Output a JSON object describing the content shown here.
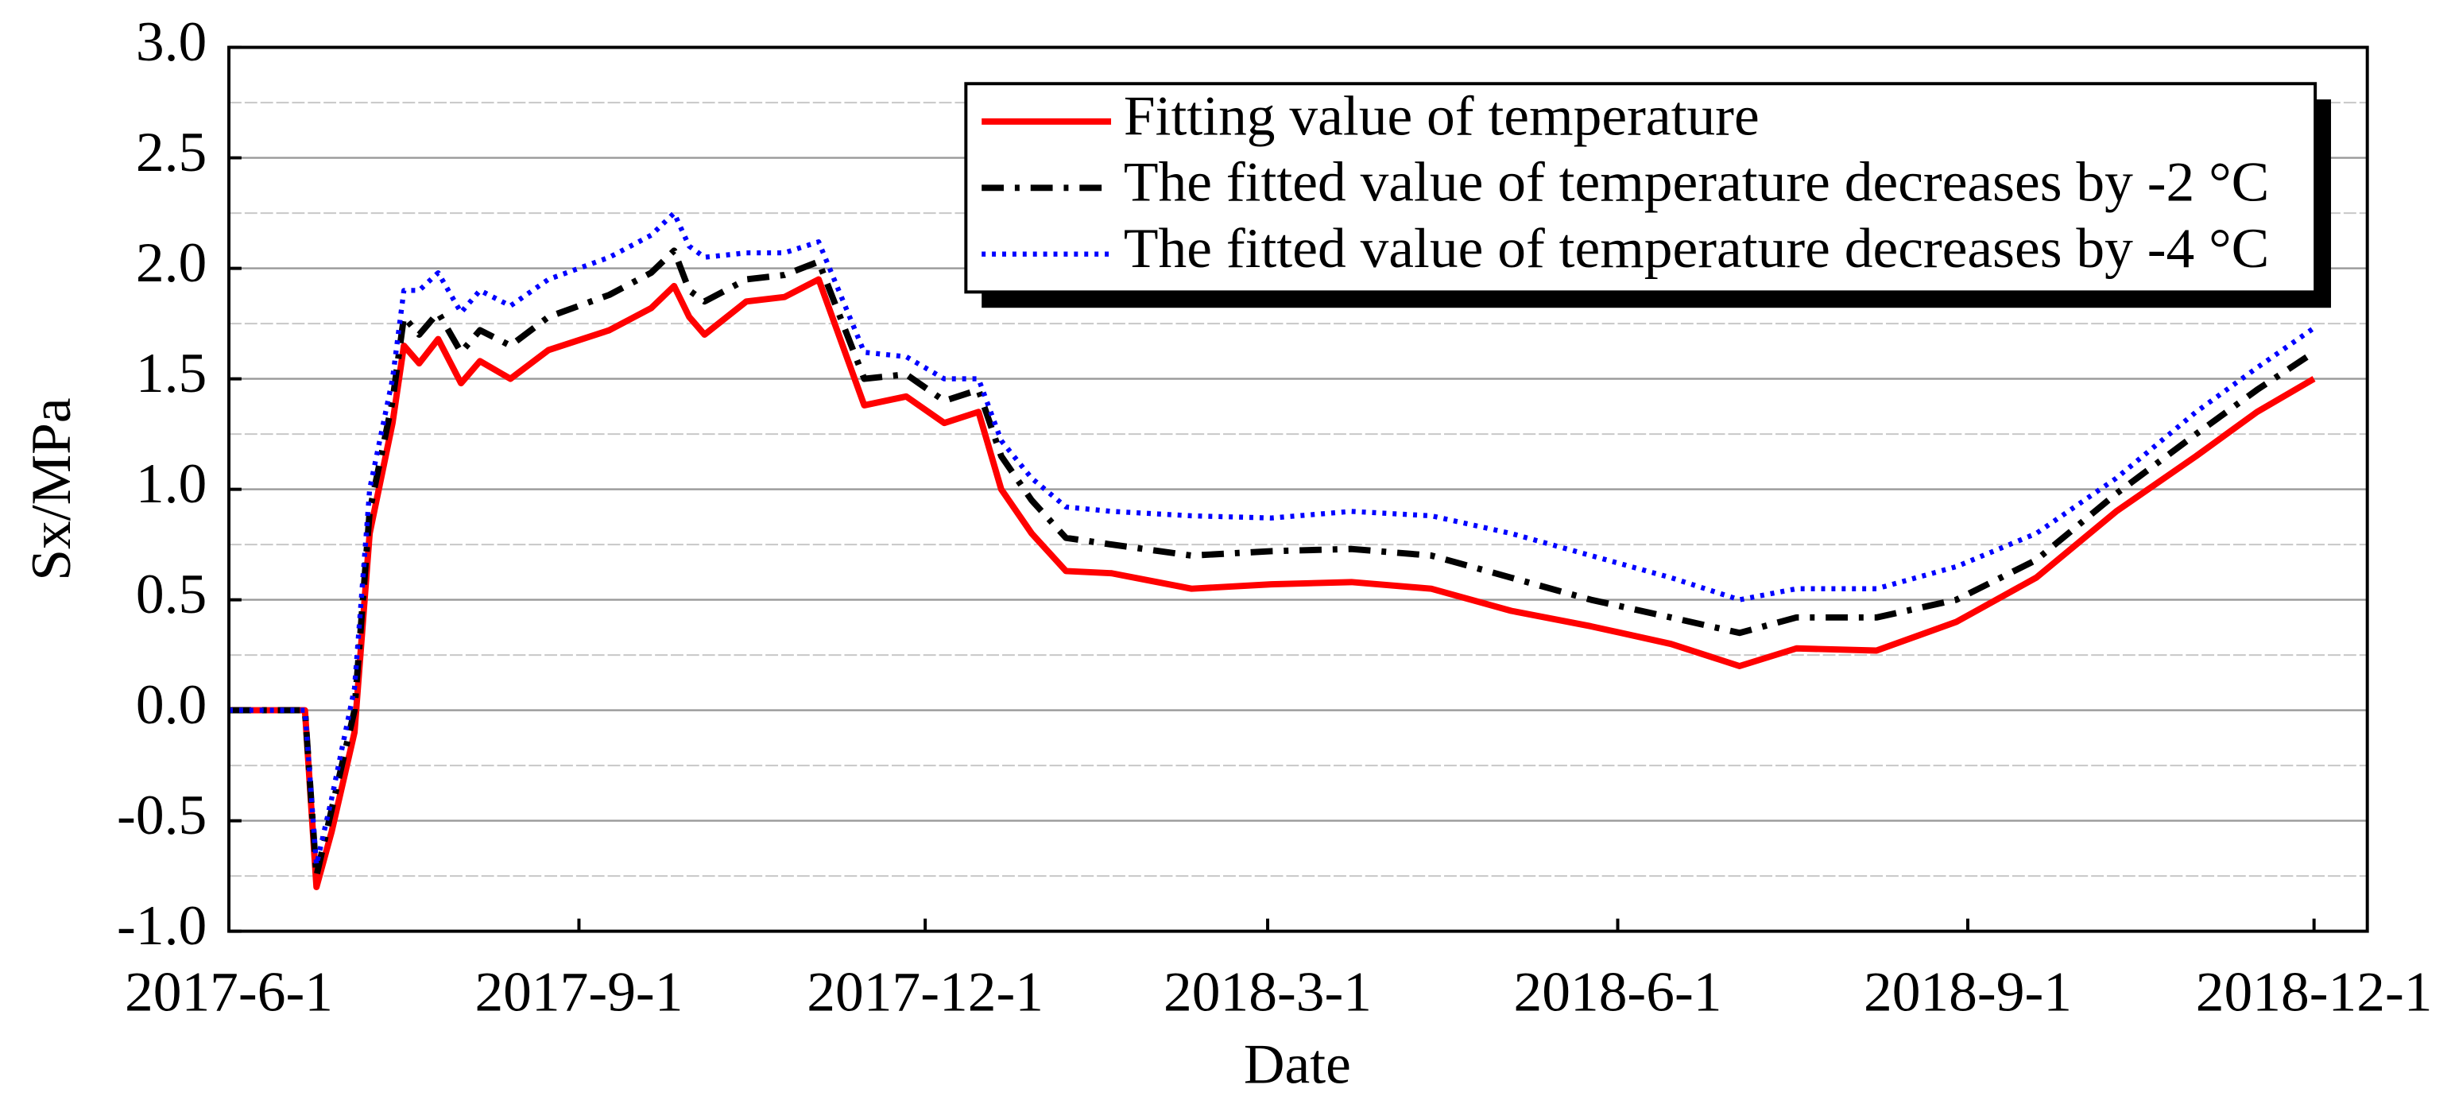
{
  "chart_data": {
    "type": "line",
    "x_label": "Date",
    "y_label": "Sx/MPa",
    "x": [
      "2017-06-01",
      "2017-06-21",
      "2017-06-24",
      "2017-06-28",
      "2017-07-04",
      "2017-07-08",
      "2017-07-14",
      "2017-07-17",
      "2017-07-21",
      "2017-07-26",
      "2017-08-01",
      "2017-08-06",
      "2017-08-14",
      "2017-08-24",
      "2017-09-09",
      "2017-09-20",
      "2017-09-26",
      "2017-09-30",
      "2017-10-04",
      "2017-10-15",
      "2017-10-25",
      "2017-11-03",
      "2017-11-15",
      "2017-11-26",
      "2017-12-06",
      "2017-12-15",
      "2017-12-21",
      "2017-12-29",
      "2018-01-07",
      "2018-01-19",
      "2018-02-09",
      "2018-03-02",
      "2018-03-23",
      "2018-04-13",
      "2018-05-04",
      "2018-05-25",
      "2018-06-15",
      "2018-07-03",
      "2018-07-18",
      "2018-08-08",
      "2018-08-29",
      "2018-09-19",
      "2018-10-10",
      "2018-10-31",
      "2018-11-16",
      "2018-12-01"
    ],
    "series": [
      {
        "name": "Fitting value of temperature",
        "color": "#ff0000",
        "linestyle": "solid",
        "values": [
          0,
          0,
          -0.8,
          -0.55,
          -0.1,
          0.8,
          1.3,
          1.65,
          1.57,
          1.68,
          1.48,
          1.58,
          1.5,
          1.63,
          1.72,
          1.82,
          1.92,
          1.78,
          1.7,
          1.85,
          1.87,
          1.95,
          1.38,
          1.42,
          1.3,
          1.35,
          1.0,
          0.8,
          0.63,
          0.62,
          0.55,
          0.57,
          0.58,
          0.55,
          0.45,
          0.38,
          0.3,
          0.2,
          0.28,
          0.27,
          0.4,
          0.6,
          0.9,
          1.15,
          1.35,
          1.5
        ]
      },
      {
        "name": "The fitted value of temperature decreases by -2 °C",
        "color": "#000000",
        "linestyle": "dashdot",
        "values": [
          0,
          0,
          -0.75,
          -0.45,
          0,
          0.9,
          1.4,
          1.78,
          1.7,
          1.8,
          1.62,
          1.72,
          1.65,
          1.78,
          1.88,
          1.98,
          2.08,
          1.9,
          1.85,
          1.95,
          1.97,
          2.03,
          1.5,
          1.52,
          1.4,
          1.45,
          1.15,
          0.95,
          0.78,
          0.75,
          0.7,
          0.72,
          0.73,
          0.7,
          0.6,
          0.5,
          0.42,
          0.35,
          0.42,
          0.42,
          0.5,
          0.68,
          0.98,
          1.25,
          1.45,
          1.62
        ]
      },
      {
        "name": "The fitted value of temperature decreases by -4 °C",
        "color": "#0000ff",
        "linestyle": "dotted",
        "values": [
          0,
          0,
          -0.7,
          -0.4,
          0.1,
          1.0,
          1.5,
          1.9,
          1.9,
          1.98,
          1.8,
          1.9,
          1.83,
          1.95,
          2.05,
          2.15,
          2.25,
          2.1,
          2.05,
          2.07,
          2.07,
          2.12,
          1.62,
          1.6,
          1.5,
          1.5,
          1.22,
          1.05,
          0.92,
          0.9,
          0.88,
          0.87,
          0.9,
          0.88,
          0.8,
          0.7,
          0.6,
          0.5,
          0.55,
          0.55,
          0.65,
          0.8,
          1.05,
          1.35,
          1.55,
          1.73
        ]
      }
    ],
    "xlim": [
      "2017-06-01",
      "2018-12-15"
    ],
    "xticks": [
      {
        "value": "2017-06-01",
        "label": "2017-6-1"
      },
      {
        "value": "2017-09-01",
        "label": "2017-9-1"
      },
      {
        "value": "2017-12-01",
        "label": "2017-12-1"
      },
      {
        "value": "2018-03-01",
        "label": "2018-3-1"
      },
      {
        "value": "2018-06-01",
        "label": "2018-6-1"
      },
      {
        "value": "2018-09-01",
        "label": "2018-9-1"
      },
      {
        "value": "2018-12-01",
        "label": "2018-12-1"
      }
    ],
    "ylim": [
      -1,
      3
    ],
    "yticks": [
      {
        "value": -1,
        "label": "-1.0"
      },
      {
        "value": -0.5,
        "label": "-0.5"
      },
      {
        "value": 0,
        "label": "0.0"
      },
      {
        "value": 0.5,
        "label": "0.5"
      },
      {
        "value": 1,
        "label": "1.0"
      },
      {
        "value": 1.5,
        "label": "1.5"
      },
      {
        "value": 2,
        "label": "2.0"
      },
      {
        "value": 2.5,
        "label": "2.5"
      },
      {
        "value": 3,
        "label": "3.0"
      }
    ],
    "yminorticks": [
      -0.75,
      -0.25,
      0.25,
      0.75,
      1.25,
      1.75,
      2.25,
      2.75
    ],
    "grid": true,
    "legend": "upper right"
  }
}
